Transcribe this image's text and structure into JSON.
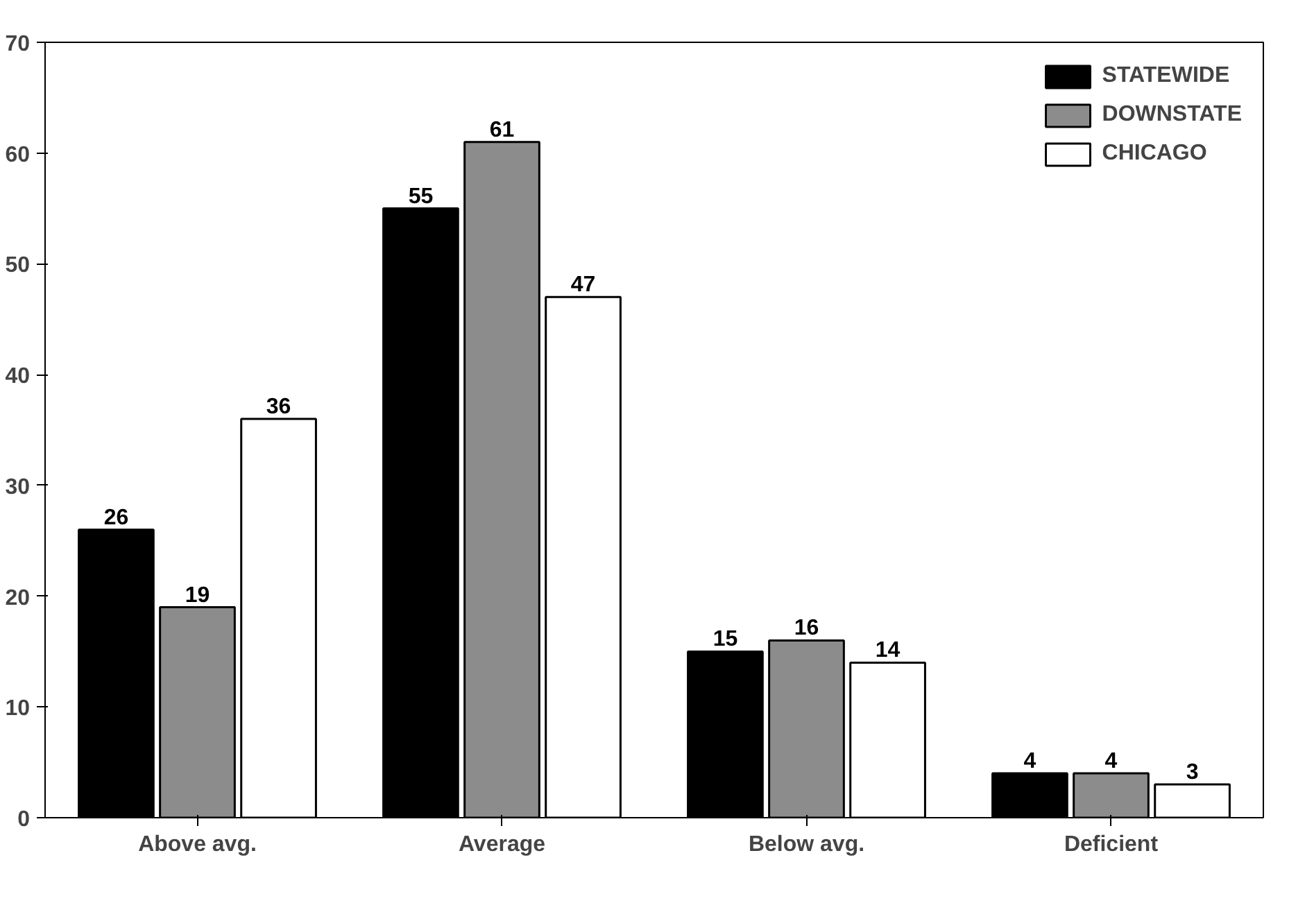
{
  "chart_data": {
    "type": "bar",
    "categories": [
      "Above avg.",
      "Average",
      "Below avg.",
      "Deficient"
    ],
    "series": [
      {
        "name": "STATEWIDE",
        "color": "#000000",
        "values": [
          26,
          55,
          15,
          4
        ]
      },
      {
        "name": "DOWNSTATE",
        "color": "#8c8c8c",
        "values": [
          19,
          61,
          16,
          4
        ]
      },
      {
        "name": "CHICAGO",
        "color": "#ffffff",
        "values": [
          36,
          47,
          14,
          3
        ]
      }
    ],
    "ylim": [
      0,
      70
    ],
    "yticks": [
      0,
      10,
      20,
      30,
      40,
      50,
      60,
      70
    ],
    "data_labels": true,
    "legend": "top right",
    "grid": false
  }
}
